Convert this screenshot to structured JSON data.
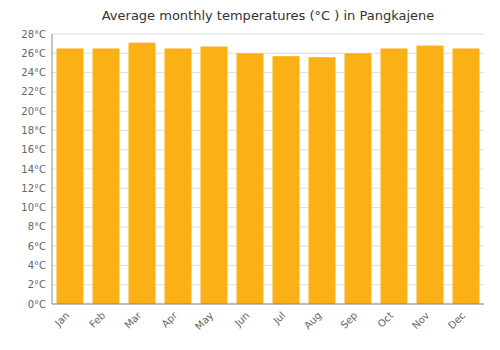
{
  "chart_data": {
    "type": "bar",
    "title": "Average monthly temperatures (°C ) in Pangkajene",
    "categories": [
      "Jan",
      "Feb",
      "Mar",
      "Apr",
      "May",
      "Jun",
      "Jul",
      "Aug",
      "Sep",
      "Oct",
      "Nov",
      "Dec"
    ],
    "values": [
      26.5,
      26.5,
      27.1,
      26.5,
      26.7,
      26.0,
      25.7,
      25.6,
      26.0,
      26.5,
      26.8,
      26.5
    ],
    "color": "#FBB116",
    "ylim": [
      0,
      28
    ],
    "yticks": [
      {
        "value": 0,
        "label": "0°C"
      },
      {
        "value": 2,
        "label": "2°C"
      },
      {
        "value": 4,
        "label": "4°C"
      },
      {
        "value": 6,
        "label": "6°C"
      },
      {
        "value": 8,
        "label": "8°C"
      },
      {
        "value": 10,
        "label": "10°C"
      },
      {
        "value": 12,
        "label": "12°C"
      },
      {
        "value": 14,
        "label": "14°C"
      },
      {
        "value": 16,
        "label": "16°C"
      },
      {
        "value": 18,
        "label": "18°C"
      },
      {
        "value": 20,
        "label": "20°C"
      },
      {
        "value": 22,
        "label": "22°C"
      },
      {
        "value": 24,
        "label": "24°C"
      },
      {
        "value": 26,
        "label": "26°C"
      },
      {
        "value": 28,
        "label": "28°C"
      }
    ],
    "grid": true
  }
}
